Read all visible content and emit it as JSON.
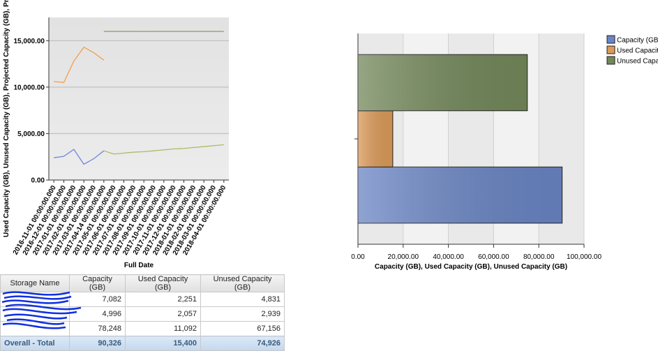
{
  "chart_data": [
    {
      "type": "line",
      "x_label": "Full Date",
      "y_label": "Used Capacity (GB), Unused Capacity (GB), Projected Capacity (GB), Proj",
      "categories": [
        "2016-11-01 00:00:00.000",
        "2016-12-01 00:00:00.000",
        "2017-01-01 00:00:00.000",
        "2017-02-01 00:00:00.000",
        "2017-03-01 00:00:00.000",
        "2017-04-14 00:00:00.000",
        "2017-05-01 00:00:00.000",
        "2017-06-01 00:00:00.000",
        "2017-07-01 00:00:00.000",
        "2017-08-01 00:00:00.000",
        "2017-09-01 00:00:00.000",
        "2017-10-01 00:00:00.000",
        "2017-11-01 00:00:00.000",
        "2017-12-01 00:00:00.000",
        "2018-01-01 00:00:00.000",
        "2018-02-01 00:00:00.000",
        "2018-03-01 00:00:00.000",
        "2018-04-01 00:00:00.000"
      ],
      "series": [
        {
          "color": "#f0a050",
          "values": [
            10600,
            10500,
            12800,
            14300,
            13700,
            12900,
            null,
            null,
            null,
            null,
            null,
            null,
            null,
            null,
            null,
            null,
            null,
            null
          ]
        },
        {
          "color": "#7486d8",
          "values": [
            2400,
            2550,
            3300,
            1700,
            2300,
            3150,
            null,
            null,
            null,
            null,
            null,
            null,
            null,
            null,
            null,
            null,
            null,
            null
          ]
        },
        {
          "color": "#a8bc64",
          "values": [
            null,
            null,
            null,
            null,
            null,
            3150,
            2800,
            2900,
            3000,
            3050,
            3150,
            3250,
            3350,
            3400,
            3500,
            3600,
            3700,
            3800
          ]
        },
        {
          "color": "#8a9a50",
          "values": [
            null,
            null,
            null,
            null,
            null,
            16000,
            16000,
            16000,
            16000,
            16000,
            16000,
            16000,
            16000,
            16000,
            16000,
            16000,
            16000,
            16000
          ]
        }
      ],
      "ylim": [
        0,
        17500
      ],
      "yticks": [
        {
          "value": 0,
          "label": "0.00"
        },
        {
          "value": 5000,
          "label": "5,000.00"
        },
        {
          "value": 10000,
          "label": "10,000.00"
        },
        {
          "value": 15000,
          "label": "15,000.00"
        }
      ],
      "grid": true
    },
    {
      "type": "bar",
      "orientation": "horizontal",
      "x_label": "Capacity (GB), Used Capacity (GB), Unused Capacity (GB)",
      "categories": [
        null
      ],
      "series": [
        {
          "name": "Capacity (GB)",
          "color": "#6a85c4",
          "values": [
            90326
          ]
        },
        {
          "name": "Used Capacity (GB)",
          "color": "#dc9a58",
          "values": [
            15400
          ]
        },
        {
          "name": "Unused Capacity (GB)",
          "color": "#73885a",
          "values": [
            74926
          ]
        }
      ],
      "xlim": [
        0,
        100000
      ],
      "xticks": [
        {
          "value": 0,
          "label": "0.00"
        },
        {
          "value": 20000,
          "label": "20,000.00"
        },
        {
          "value": 40000,
          "label": "40,000.00"
        },
        {
          "value": 60000,
          "label": "60,000.00"
        },
        {
          "value": 80000,
          "label": "80,000.00"
        },
        {
          "value": 100000,
          "label": "100,000.00"
        }
      ],
      "grid": true,
      "legend": "top-right"
    }
  ],
  "table": {
    "columns": [
      "Storage Name",
      "Capacity (GB)",
      "Used Capacity (GB)",
      "Unused Capacity (GB)"
    ],
    "rows": [
      [
        null,
        "7,082",
        "2,251",
        "4,831"
      ],
      [
        null,
        "4,996",
        "2,057",
        "2,939"
      ],
      [
        null,
        "78,248",
        "11,092",
        "67,156"
      ]
    ],
    "footer": [
      "Overall - Total",
      "90,326",
      "15,400",
      "74,926"
    ]
  }
}
